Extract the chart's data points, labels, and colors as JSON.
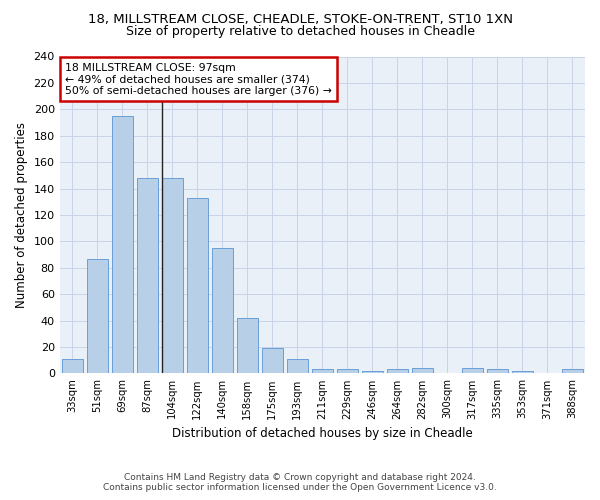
{
  "title_line1": "18, MILLSTREAM CLOSE, CHEADLE, STOKE-ON-TRENT, ST10 1XN",
  "title_line2": "Size of property relative to detached houses in Cheadle",
  "xlabel": "Distribution of detached houses by size in Cheadle",
  "ylabel": "Number of detached properties",
  "categories": [
    "33sqm",
    "51sqm",
    "69sqm",
    "87sqm",
    "104sqm",
    "122sqm",
    "140sqm",
    "158sqm",
    "175sqm",
    "193sqm",
    "211sqm",
    "229sqm",
    "246sqm",
    "264sqm",
    "282sqm",
    "300sqm",
    "317sqm",
    "335sqm",
    "353sqm",
    "371sqm",
    "388sqm"
  ],
  "values": [
    11,
    87,
    195,
    148,
    148,
    133,
    95,
    42,
    19,
    11,
    3,
    3,
    2,
    3,
    4,
    0,
    4,
    3,
    2,
    0,
    3
  ],
  "bar_color": "#b8cfe8",
  "bar_edge_color": "#6a9fd8",
  "annotation_text": "18 MILLSTREAM CLOSE: 97sqm\n← 49% of detached houses are smaller (374)\n50% of semi-detached houses are larger (376) →",
  "annotation_box_color": "#ffffff",
  "annotation_box_edge": "#cc0000",
  "ylim": [
    0,
    240
  ],
  "yticks": [
    0,
    20,
    40,
    60,
    80,
    100,
    120,
    140,
    160,
    180,
    200,
    220,
    240
  ],
  "background_color": "#eaf0f8",
  "grid_color": "#c8d4e8",
  "footer_line1": "Contains HM Land Registry data © Crown copyright and database right 2024.",
  "footer_line2": "Contains public sector information licensed under the Open Government Licence v3.0.",
  "vline_color": "#222222"
}
